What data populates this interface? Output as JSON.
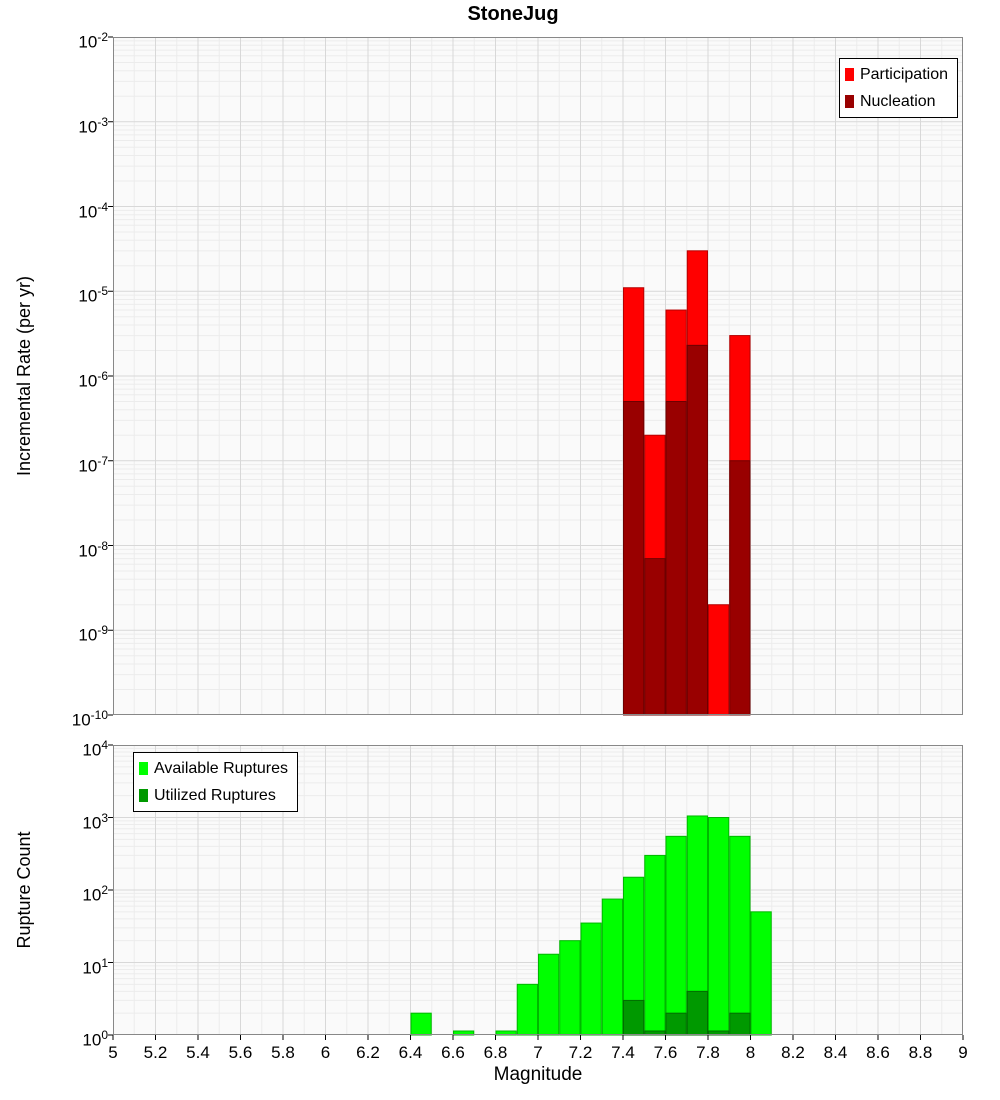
{
  "figure": {
    "title": "StoneJug",
    "xlabel": "Magnitude",
    "background": "#ffffff"
  },
  "chart_data": [
    {
      "type": "bar",
      "title": "StoneJug",
      "ylabel": "Incremental Rate (per yr)",
      "yscale": "log",
      "ylim_exponents": [
        -10,
        -2
      ],
      "xlim": [
        5,
        9
      ],
      "bin_width": 0.1,
      "grid": true,
      "legend_position": "top-right",
      "plot_bg": "#fafafa",
      "grid_minor": "#ececec",
      "grid_major": "#d8d8d8",
      "frame_color": "#888888",
      "x_tick_labels": [],
      "series": [
        {
          "name": "Participation",
          "color": "#ff0000",
          "bins": [
            [
              7.4,
              1.1e-05
            ],
            [
              7.5,
              2e-07
            ],
            [
              7.6,
              6e-06
            ],
            [
              7.7,
              3e-05
            ],
            [
              7.8,
              2e-09
            ],
            [
              7.9,
              3e-06
            ]
          ]
        },
        {
          "name": "Nucleation",
          "color": "#990000",
          "bins": [
            [
              7.4,
              5e-07
            ],
            [
              7.5,
              7e-09
            ],
            [
              7.6,
              5e-07
            ],
            [
              7.7,
              2.3e-06
            ],
            [
              7.9,
              1e-07
            ]
          ]
        }
      ]
    },
    {
      "type": "bar",
      "title": "",
      "ylabel": "Rupture Count",
      "yscale": "log",
      "ylim_exponents": [
        0,
        4
      ],
      "xlim": [
        5,
        9
      ],
      "bin_width": 0.1,
      "grid": true,
      "legend_position": "top-left",
      "plot_bg": "#fafafa",
      "grid_minor": "#ececec",
      "grid_major": "#d8d8d8",
      "frame_color": "#888888",
      "x_tick_labels": [
        "5",
        "5.2",
        "5.4",
        "5.6",
        "5.8",
        "6",
        "6.2",
        "6.4",
        "6.6",
        "6.8",
        "7",
        "7.2",
        "7.4",
        "7.6",
        "7.8",
        "8",
        "8.2",
        "8.4",
        "8.6",
        "8.8",
        "9"
      ],
      "series": [
        {
          "name": "Available Ruptures",
          "color": "#00ff00",
          "bins": [
            [
              6.4,
              2
            ],
            [
              6.6,
              1
            ],
            [
              6.8,
              1
            ],
            [
              6.9,
              5
            ],
            [
              7.0,
              13
            ],
            [
              7.1,
              20
            ],
            [
              7.2,
              35
            ],
            [
              7.3,
              75
            ],
            [
              7.4,
              150
            ],
            [
              7.5,
              300
            ],
            [
              7.6,
              550
            ],
            [
              7.7,
              1050
            ],
            [
              7.8,
              1000
            ],
            [
              7.9,
              550
            ],
            [
              8.0,
              50
            ]
          ]
        },
        {
          "name": "Utilized Ruptures",
          "color": "#009900",
          "bins": [
            [
              7.4,
              3
            ],
            [
              7.5,
              1
            ],
            [
              7.6,
              2
            ],
            [
              7.7,
              4
            ],
            [
              7.8,
              1
            ],
            [
              7.9,
              2
            ]
          ]
        }
      ]
    }
  ]
}
